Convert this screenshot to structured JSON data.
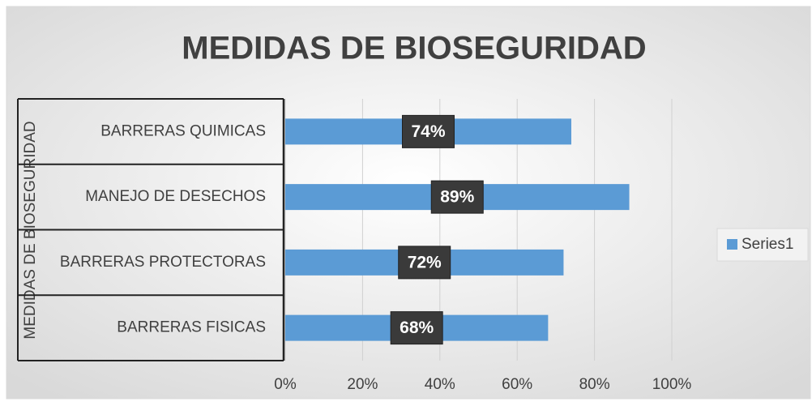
{
  "chart_data": {
    "type": "bar",
    "orientation": "horizontal",
    "title": "MEDIDAS DE BIOSEGURIDAD",
    "y_label": "MEDIDAS DE BIOSEGURIDAD",
    "categories": [
      "BARRERAS FISICAS",
      "BARRERAS PROTECTORAS",
      "MANEJO DE DESECHOS",
      "BARRERAS QUIMICAS"
    ],
    "series": [
      {
        "name": "Series1",
        "color": "#5b9bd5",
        "values": [
          68,
          72,
          89,
          74
        ],
        "value_labels": [
          "68%",
          "72%",
          "89%",
          "74%"
        ]
      }
    ],
    "xlim": [
      0,
      100
    ],
    "xticks": [
      {
        "value": 0,
        "label": "0%"
      },
      {
        "value": 20,
        "label": "20%"
      },
      {
        "value": 40,
        "label": "40%"
      },
      {
        "value": 60,
        "label": "60%"
      },
      {
        "value": 80,
        "label": "80%"
      },
      {
        "value": 100,
        "label": "100%"
      }
    ],
    "grid": true,
    "legend": "right"
  }
}
